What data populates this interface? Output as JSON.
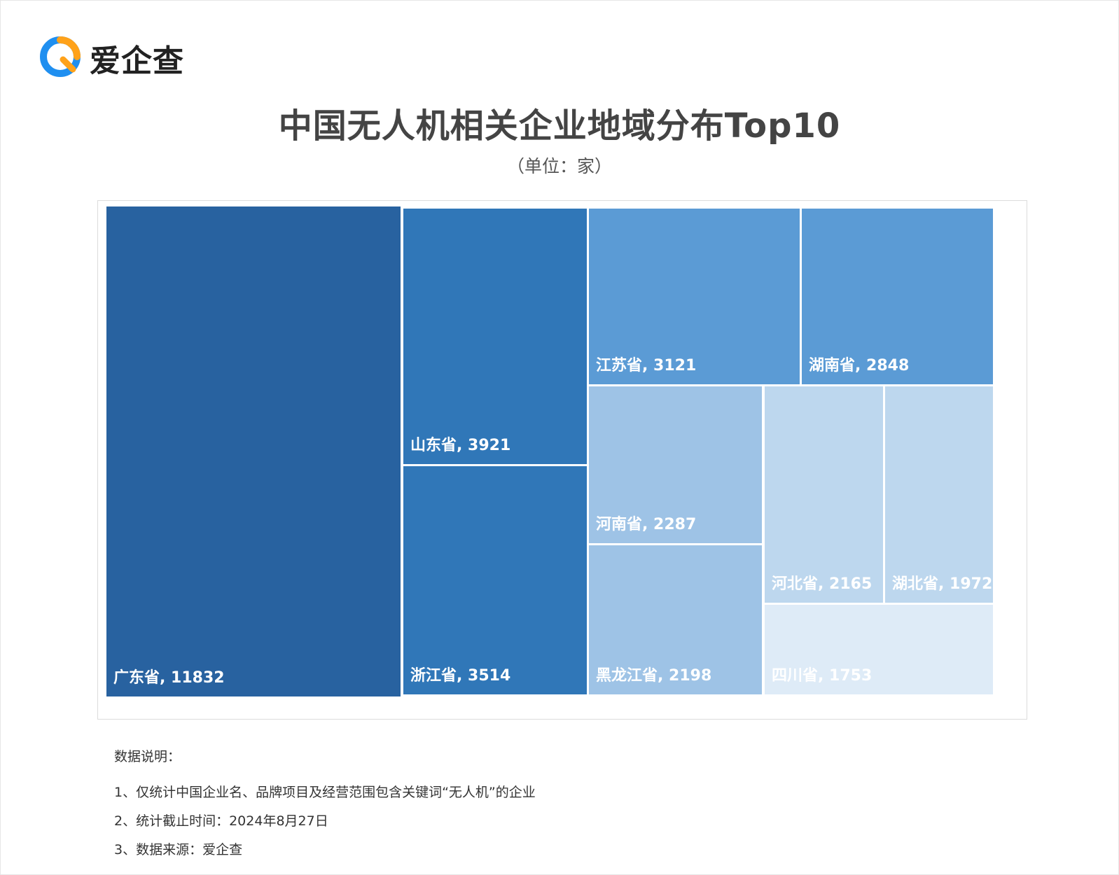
{
  "brand": {
    "name": "爱企查",
    "logo_icon": "magnifier-q-icon",
    "colors": {
      "blue": "#1f8ff0",
      "orange": "#ffa21a"
    }
  },
  "title": "中国无人机相关企业地域分布Top10",
  "subtitle": "（单位：家）",
  "chart_data": {
    "type": "treemap",
    "title": "中国无人机相关企业地域分布Top10",
    "unit": "家",
    "items": [
      {
        "name": "广东省",
        "value": 11832,
        "label": "广东省, 11832",
        "color": "#2862a0"
      },
      {
        "name": "山东省",
        "value": 3921,
        "label": "山东省, 3921",
        "color": "#3077b8"
      },
      {
        "name": "浙江省",
        "value": 3514,
        "label": "浙江省, 3514",
        "color": "#3077b8"
      },
      {
        "name": "江苏省",
        "value": 3121,
        "label": "江苏省, 3121",
        "color": "#5b9bd5"
      },
      {
        "name": "湖南省",
        "value": 2848,
        "label": "湖南省, 2848",
        "color": "#5b9bd5"
      },
      {
        "name": "河南省",
        "value": 2287,
        "label": "河南省, 2287",
        "color": "#9ec3e6"
      },
      {
        "name": "黑龙江省",
        "value": 2198,
        "label": "黑龙江省, 2198",
        "color": "#9ec3e6"
      },
      {
        "name": "河北省",
        "value": 2165,
        "label": "河北省, 2165",
        "color": "#bdd7ee"
      },
      {
        "name": "湖北省",
        "value": 1972,
        "label": "湖北省, 1972",
        "color": "#bdd7ee"
      },
      {
        "name": "四川省",
        "value": 1753,
        "label": "四川省, 1753",
        "color": "#deebf7"
      }
    ]
  },
  "notes": {
    "heading": "数据说明：",
    "lines": [
      "1、仅统计中国企业名、品牌项目及经营范围包含关键词“无人机”的企业",
      "2、统计截止时间：2024年8月27日",
      "3、数据来源：爱企查"
    ]
  }
}
